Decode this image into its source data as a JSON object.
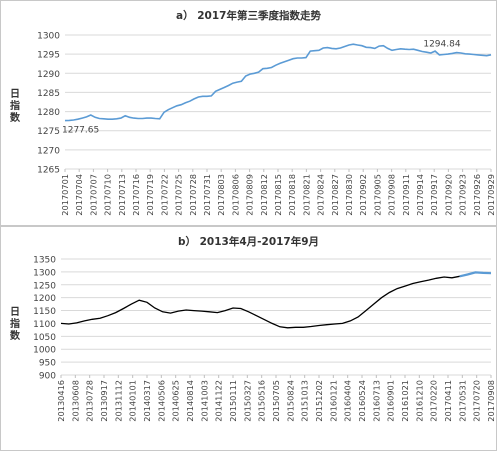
{
  "chart_data": [
    {
      "type": "line",
      "title": "a） 2017年第三季度指数走势",
      "ylabel": "日指数",
      "ylim": [
        1265,
        1300
      ],
      "yticks": [
        1265,
        1270,
        1275,
        1280,
        1285,
        1290,
        1295,
        1300
      ],
      "grid": "horizontal",
      "legend": "none",
      "color": "#5b9bd5",
      "x_tick_labels": [
        "20170701",
        "20170704",
        "20170707",
        "20170710",
        "20170713",
        "20170716",
        "20170719",
        "20170722",
        "20170725",
        "20170728",
        "20170731",
        "20170803",
        "20170806",
        "20170809",
        "20170812",
        "20170815",
        "20170818",
        "20170821",
        "20170824",
        "20170827",
        "20170830",
        "20170902",
        "20170905",
        "20170908",
        "20170911",
        "20170914",
        "20170917",
        "20170920",
        "20170923",
        "20170926",
        "20170929"
      ],
      "annotations": [
        {
          "text": "1277.65",
          "at_index": 0
        },
        {
          "text": "1294.84",
          "at_index": 91
        }
      ],
      "values": [
        1277.65,
        1277.7,
        1277.8,
        1278.0,
        1278.3,
        1278.6,
        1279.1,
        1278.5,
        1278.2,
        1278.1,
        1278.0,
        1278.0,
        1278.1,
        1278.3,
        1278.9,
        1278.5,
        1278.3,
        1278.2,
        1278.2,
        1278.3,
        1278.3,
        1278.2,
        1278.1,
        1279.8,
        1280.5,
        1281.0,
        1281.5,
        1281.8,
        1282.3,
        1282.7,
        1283.3,
        1283.8,
        1284.0,
        1284.0,
        1284.1,
        1285.3,
        1285.8,
        1286.3,
        1286.8,
        1287.4,
        1287.7,
        1287.9,
        1289.3,
        1289.8,
        1290.0,
        1290.3,
        1291.2,
        1291.3,
        1291.5,
        1292.1,
        1292.6,
        1293.0,
        1293.4,
        1293.8,
        1294.0,
        1294.0,
        1294.1,
        1295.8,
        1295.9,
        1296.0,
        1296.6,
        1296.7,
        1296.5,
        1296.4,
        1296.6,
        1297.0,
        1297.4,
        1297.6,
        1297.4,
        1297.2,
        1296.8,
        1296.7,
        1296.5,
        1297.1,
        1297.2,
        1296.5,
        1296.0,
        1296.2,
        1296.4,
        1296.3,
        1296.2,
        1296.3,
        1296.0,
        1295.7,
        1295.5,
        1295.3,
        1295.8,
        1294.8,
        1294.9,
        1295.0,
        1295.2,
        1295.4,
        1295.3,
        1295.1,
        1295.0,
        1294.9,
        1294.8,
        1294.7,
        1294.6,
        1294.84
      ]
    },
    {
      "type": "line",
      "title": "b） 2013年4月-2017年9月",
      "ylabel": "日指数",
      "ylim": [
        900,
        1350
      ],
      "yticks": [
        900,
        950,
        1000,
        1050,
        1100,
        1150,
        1200,
        1250,
        1300,
        1350
      ],
      "grid": "horizontal",
      "legend": "none",
      "colors": {
        "history": "#000000",
        "highlight": "#5b9bd5"
      },
      "highlight_from_index": 51,
      "x_tick_labels": [
        "20130416",
        "20130608",
        "20130728",
        "20130917",
        "20131112",
        "20140101",
        "20140317",
        "20140506",
        "20140625",
        "20140814",
        "20141003",
        "20141122",
        "20150111",
        "20150327",
        "20150516",
        "20150705",
        "20150824",
        "20151013",
        "20151202",
        "20160121",
        "20160404",
        "20160524",
        "20160713",
        "20160901",
        "20161021",
        "20161210",
        "20170220",
        "20170411",
        "20170531",
        "20170720",
        "20170908"
      ],
      "values": [
        1100,
        1098,
        1102,
        1110,
        1116,
        1120,
        1130,
        1142,
        1158,
        1175,
        1190,
        1182,
        1160,
        1145,
        1140,
        1148,
        1152,
        1150,
        1148,
        1145,
        1142,
        1150,
        1160,
        1158,
        1145,
        1130,
        1115,
        1100,
        1087,
        1083,
        1085,
        1085,
        1088,
        1092,
        1095,
        1098,
        1100,
        1110,
        1125,
        1150,
        1175,
        1200,
        1220,
        1235,
        1245,
        1255,
        1262,
        1268,
        1275,
        1280,
        1277,
        1283,
        1290,
        1298,
        1296,
        1295
      ]
    }
  ]
}
